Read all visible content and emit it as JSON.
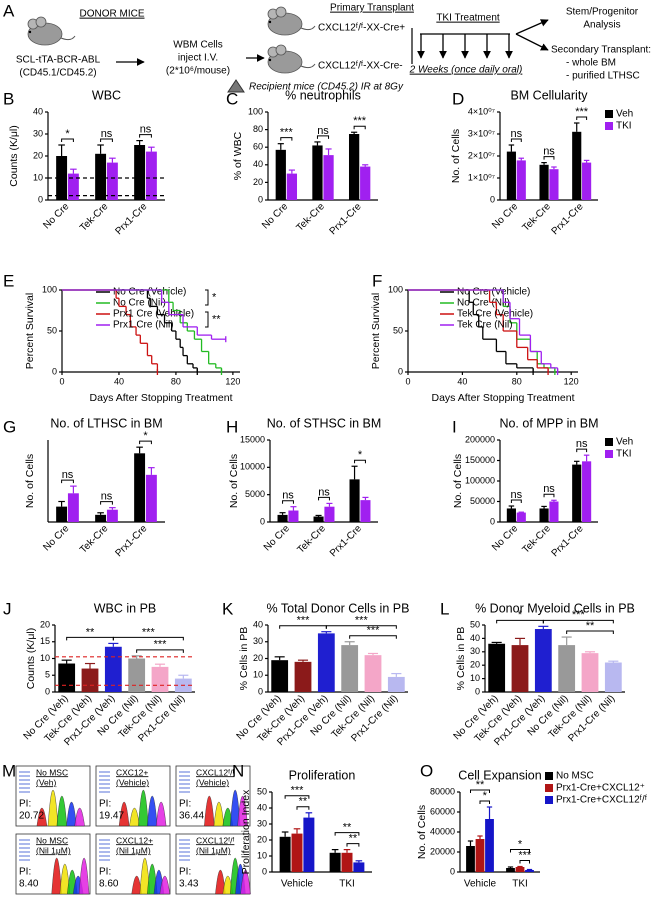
{
  "panel_a": {
    "panel": "A",
    "donor_title": "DONOR MICE",
    "donor_strain": "SCL-tTA-BCR-ABL",
    "donor_marker": "(CD45.1/CD45.2)",
    "cells_line1": "WBM Cells",
    "cells_line2": "inject I.V.",
    "cells_line3": "(2*10⁶/mouse)",
    "primary_title": "Primary Transplant",
    "recipient_pos": "CXCL12ᶠ/ᶠ-XX-Cre+",
    "recipient_neg": "CXCL12ᶠ/ᶠ-XX-Cre-",
    "recipient_note": "Recipient mice (CD45.2) IR at 8Gy",
    "treatment_title": "TKI Treatment",
    "treatment_duration": "2 Weeks (once daily oral)",
    "outcome_1a": "Stem/Progenitor",
    "outcome_1b": "Analysis",
    "outcome_2": "Secondary Transplant:",
    "outcome_2a": "-  whole BM",
    "outcome_2b": "-  purified LTHSC"
  },
  "chart_data": [
    {
      "type": "bar",
      "panel": "B",
      "title": "WBC",
      "y_label": "Counts (K/μl)",
      "categories": [
        "No Cre",
        "Tek-Cre",
        "Prx1-Cre"
      ],
      "series": [
        {
          "color": "#000000",
          "values": [
            20,
            21,
            25
          ],
          "errors": [
            5,
            4,
            2
          ]
        },
        {
          "color": "#a020f0",
          "values": [
            12,
            17,
            22
          ],
          "errors": [
            2,
            2,
            2
          ]
        }
      ],
      "ylim": [
        0,
        40
      ],
      "yticks": [
        0,
        10,
        20,
        30,
        40
      ],
      "hlines": [
        10,
        2
      ],
      "hline_color": "#000000",
      "annotations": [
        "*",
        "ns",
        "ns"
      ]
    },
    {
      "type": "bar",
      "panel": "C",
      "title": "% neutrophils",
      "y_label": "% of WBC",
      "categories": [
        "No Cre",
        "Tek-Cre",
        "Prx1-Cre"
      ],
      "series": [
        {
          "color": "#000000",
          "values": [
            57,
            62,
            75
          ],
          "errors": [
            7,
            4,
            2
          ]
        },
        {
          "color": "#a020f0",
          "values": [
            30,
            51,
            38
          ],
          "errors": [
            4,
            7,
            2
          ]
        }
      ],
      "ylim": [
        0,
        100
      ],
      "yticks": [
        0,
        20,
        40,
        60,
        80,
        100
      ],
      "annotations": [
        "***",
        "ns",
        "***"
      ]
    },
    {
      "type": "bar",
      "panel": "D",
      "title": "BM Cellularity",
      "y_label": "No. of Cells",
      "categories": [
        "No Cre",
        "Tek-Cre",
        "Prx1-Cre"
      ],
      "series": [
        {
          "name": "Veh",
          "color": "#000000",
          "values": [
            22000000,
            16000000,
            31000000
          ],
          "errors": [
            3000000,
            1000000,
            4000000
          ]
        },
        {
          "name": "TKI",
          "color": "#a020f0",
          "values": [
            18000000,
            14000000,
            17000000
          ],
          "errors": [
            1000000,
            1000000,
            1000000
          ]
        }
      ],
      "ylim": [
        0,
        40000000
      ],
      "yticks": [
        0,
        {
          "value": 10000000,
          "label": "1×10⁰⁷"
        },
        {
          "value": 20000000,
          "label": "2×10⁰⁷"
        },
        {
          "value": 30000000,
          "label": "3×10⁰⁷"
        },
        {
          "value": 40000000,
          "label": "4×10⁰⁷"
        }
      ],
      "annotations": [
        "ns",
        "ns",
        "***"
      ]
    },
    {
      "type": "step",
      "panel": "E",
      "x_label": "Days After Stopping Treatment",
      "y_label": "Percent Survival",
      "xlim": [
        0,
        125
      ],
      "xticks": [
        0,
        40,
        80,
        120
      ],
      "ylim": [
        0,
        100
      ],
      "yticks": [
        0,
        50,
        100
      ],
      "series": [
        {
          "name": "No Cre (Vehicle)",
          "color": "#000000",
          "x": [
            0,
            60,
            62,
            67,
            72,
            77,
            80,
            83,
            85,
            88,
            92,
            95
          ],
          "values": [
            100,
            90,
            80,
            70,
            60,
            50,
            40,
            30,
            20,
            10,
            5,
            0
          ]
        },
        {
          "name": "No Cre (Nil)",
          "color": "#22bb22",
          "x": [
            0,
            75,
            78,
            83,
            88,
            93,
            98,
            103,
            108,
            112
          ],
          "values": [
            100,
            85,
            75,
            60,
            50,
            40,
            25,
            10,
            5,
            0
          ]
        },
        {
          "name": "Prx1 Cre (Vehicle)",
          "color": "#cc1111",
          "x": [
            0,
            38,
            40,
            45,
            48,
            52,
            55,
            60,
            63,
            67
          ],
          "values": [
            100,
            90,
            80,
            70,
            55,
            45,
            35,
            20,
            10,
            0
          ]
        },
        {
          "name": "Prx1 Cre (Nil)",
          "color": "#a020f0",
          "x": [
            0,
            70,
            75,
            85,
            95,
            105,
            115
          ],
          "values": [
            100,
            85,
            70,
            55,
            45,
            40,
            40
          ]
        }
      ],
      "annotations": [
        "*",
        "**"
      ]
    },
    {
      "type": "step",
      "panel": "F",
      "x_label": "Days After Stopping Treatment",
      "y_label": "Percent Survival",
      "xlim": [
        0,
        125
      ],
      "xticks": [
        0,
        40,
        80,
        120
      ],
      "ylim": [
        0,
        100
      ],
      "yticks": [
        0,
        50,
        100
      ],
      "series": [
        {
          "name": "No Cre (Vehicle)",
          "color": "#000000",
          "x": [
            0,
            45,
            48,
            52,
            55,
            65,
            72,
            80,
            92
          ],
          "values": [
            100,
            85,
            70,
            55,
            40,
            25,
            10,
            5,
            0
          ]
        },
        {
          "name": "No Cre (Nil)",
          "color": "#22bb22",
          "x": [
            0,
            70,
            75,
            80,
            90,
            95,
            100,
            108
          ],
          "values": [
            100,
            80,
            60,
            40,
            25,
            10,
            5,
            0
          ]
        },
        {
          "name": "Tek Cre (Vehicle)",
          "color": "#cc1111",
          "x": [
            0,
            60,
            65,
            70,
            80,
            88,
            95,
            103
          ],
          "values": [
            100,
            85,
            70,
            50,
            30,
            15,
            5,
            0
          ]
        },
        {
          "name": "Tek Cre (Nil)",
          "color": "#a020f0",
          "x": [
            0,
            70,
            75,
            82,
            90,
            98,
            105,
            110
          ],
          "values": [
            100,
            85,
            65,
            45,
            25,
            10,
            5,
            0
          ]
        }
      ]
    },
    {
      "type": "bar",
      "panel": "G",
      "title": "No. of LTHSC in BM",
      "y_label": "No. of Cells",
      "categories": [
        "No Cre",
        "Tek-Cre",
        "Prx1-Cre"
      ],
      "series": [
        {
          "color": "#000000",
          "values": [
            1500,
            700,
            6700
          ],
          "errors": [
            500,
            200,
            600
          ]
        },
        {
          "color": "#a020f0",
          "values": [
            2800,
            1200,
            4600
          ],
          "errors": [
            700,
            200,
            700
          ]
        }
      ],
      "ylim": [
        0,
        8000
      ],
      "annotations": [
        "ns",
        "ns",
        "*"
      ]
    },
    {
      "type": "bar",
      "panel": "H",
      "title": "No. of STHSC in BM",
      "y_label": "No. of Cells",
      "categories": [
        "No Cre",
        "Tek-Cre",
        "Prx1-Cre"
      ],
      "series": [
        {
          "color": "#000000",
          "values": [
            1300,
            1000,
            7800
          ],
          "errors": [
            400,
            200,
            2400
          ]
        },
        {
          "color": "#a020f0",
          "values": [
            2100,
            2800,
            4000
          ],
          "errors": [
            700,
            600,
            500
          ]
        }
      ],
      "ylim": [
        0,
        15000
      ],
      "yticks": [
        0,
        5000,
        10000,
        15000
      ],
      "annotations": [
        "ns",
        "ns",
        "*"
      ]
    },
    {
      "type": "bar",
      "panel": "I",
      "title": "No. of MPP in BM",
      "y_label": "No. of Cells",
      "categories": [
        "No Cre",
        "Tek-Cre",
        "Prx1-Cre"
      ],
      "series": [
        {
          "name": "Veh",
          "color": "#000000",
          "values": [
            33000,
            33000,
            140000
          ],
          "errors": [
            6000,
            5000,
            8000
          ]
        },
        {
          "name": "TKI",
          "color": "#a020f0",
          "values": [
            23000,
            50000,
            148000
          ],
          "errors": [
            1000,
            3000,
            15000
          ]
        }
      ],
      "ylim": [
        0,
        200000
      ],
      "yticks": [
        0,
        50000,
        100000,
        150000,
        200000
      ],
      "annotations": [
        "ns",
        "ns",
        "ns"
      ]
    },
    {
      "type": "bar",
      "panel": "J",
      "title": "WBC in PB",
      "y_label": "Counts (K/μl)",
      "categories": [
        "No Cre (Veh)",
        "Tek-Cre (Veh)",
        "Prx1-Cre (Veh)",
        "No Cre (Nil)",
        "Tek-Cre (Nil)",
        "Prx1-Cre (Nil)"
      ],
      "values": [
        8.5,
        7,
        13.5,
        10,
        7.5,
        4
      ],
      "errors": [
        1,
        1.5,
        1,
        0.8,
        0.8,
        1
      ],
      "colors": [
        "#000000",
        "#8b1a1a",
        "#1f1fd0",
        "#999999",
        "#f4a6c8",
        "#b8b8f0"
      ],
      "ylim": [
        0,
        20
      ],
      "yticks": [
        0,
        5,
        10,
        15,
        20
      ],
      "hlines": [
        10.5,
        2
      ],
      "hline_color": "#dd2222",
      "annotations": [
        "**",
        "***",
        "***"
      ]
    },
    {
      "type": "bar",
      "panel": "K",
      "title": "% Total Donor Cells in PB",
      "y_label": "% Cells in PB",
      "categories": [
        "No Cre (Veh)",
        "Tek-Cre (Veh)",
        "Prx1-Cre (Veh)",
        "No Cre (Nil)",
        "Tek-Cre (Nil)",
        "Prx1-Cre (Nil)"
      ],
      "values": [
        19,
        18,
        35,
        28,
        22,
        9
      ],
      "errors": [
        2,
        1,
        1,
        2,
        1,
        2
      ],
      "colors": [
        "#000000",
        "#8b1a1a",
        "#1f1fd0",
        "#999999",
        "#f4a6c8",
        "#b8b8f0"
      ],
      "ylim": [
        0,
        40
      ],
      "yticks": [
        0,
        10,
        20,
        30,
        40
      ],
      "annotations": [
        "***",
        "***",
        "***"
      ]
    },
    {
      "type": "bar",
      "panel": "L",
      "title": "% Donor Myeloid Cells in PB",
      "y_label": "% Cells in PB",
      "categories": [
        "No Cre (Veh)",
        "Tek-Cre (Veh)",
        "Prx1-Cre (Veh)",
        "No Cre (Nil)",
        "Tek-Cre (Nil)",
        "Prx1-Cre (Nil)"
      ],
      "values": [
        36,
        35,
        47,
        35,
        29,
        22
      ],
      "errors": [
        1,
        5,
        2,
        6,
        1,
        1
      ],
      "colors": [
        "#000000",
        "#8b1a1a",
        "#1f1fd0",
        "#999999",
        "#f4a6c8",
        "#b8b8f0"
      ],
      "ylim": [
        0,
        50
      ],
      "yticks": [
        0,
        10,
        20,
        30,
        40,
        50
      ],
      "annotations": [
        "*",
        "***",
        "**"
      ]
    },
    {
      "type": "bar",
      "panel": "N",
      "title": "Proliferation",
      "y_label": "Proliferation Index",
      "categories": [
        "Vehicle",
        "TKI"
      ],
      "series": [
        {
          "color": "#000000",
          "values": [
            22,
            12
          ],
          "errors": [
            3,
            2
          ]
        },
        {
          "color": "#b01515",
          "values": [
            24,
            12
          ],
          "errors": [
            3,
            2
          ]
        },
        {
          "color": "#1515c8",
          "values": [
            34,
            6
          ],
          "errors": [
            3,
            1
          ]
        }
      ],
      "ylim": [
        0,
        50
      ],
      "yticks": [
        0,
        10,
        20,
        30,
        40,
        50
      ],
      "annotations": [
        "***",
        "**",
        "**",
        "**"
      ]
    },
    {
      "type": "bar",
      "panel": "O",
      "title": "Cell Expansion",
      "y_label": "No. of Cells",
      "categories": [
        "Vehicle",
        "TKI"
      ],
      "series": [
        {
          "name": "No MSC",
          "color": "#000000",
          "values": [
            26000,
            4000
          ],
          "errors": [
            5000,
            1000
          ]
        },
        {
          "name": "Prx1-Cre+CXCL12⁺",
          "color": "#b01515",
          "values": [
            33000,
            5000
          ],
          "errors": [
            3000,
            500
          ]
        },
        {
          "name": "Prx1-Cre+CXCL12ᶠ/ᶠ",
          "color": "#1515c8",
          "values": [
            53000,
            2000
          ],
          "errors": [
            12000,
            500
          ]
        }
      ],
      "ylim": [
        0,
        80000
      ],
      "yticks": [
        0,
        20000,
        40000,
        60000,
        80000
      ],
      "annotations": [
        "**",
        "*",
        "*",
        "***"
      ]
    }
  ],
  "panel_m": {
    "panel": "M",
    "pi_label": "PI:",
    "plots": [
      {
        "title": "No MSC",
        "subtitle": "(Veh)",
        "pi": "20.72"
      },
      {
        "title": "CXC12+",
        "subtitle": "(Vehicle)",
        "pi": "19.47"
      },
      {
        "title": "CXCL12ᶠ/ᶠ",
        "subtitle": "(Vehicle)",
        "pi": "36.44"
      },
      {
        "title": "No MSC",
        "subtitle": "(Nil 1μM)",
        "pi": "8.40"
      },
      {
        "title": "CXCL12+",
        "subtitle": "(Nil 1μM)",
        "pi": "8.60"
      },
      {
        "title": "CXCL12ᶠ/ᶠ",
        "subtitle": "(Nil 1μM)",
        "pi": "3.43"
      }
    ]
  }
}
